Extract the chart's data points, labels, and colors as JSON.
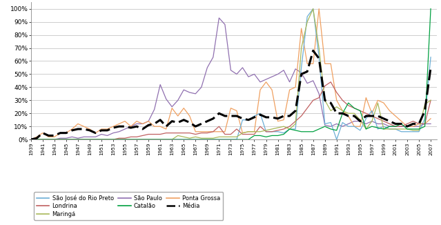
{
  "years": [
    1939,
    1940,
    1941,
    1942,
    1943,
    1944,
    1945,
    1946,
    1947,
    1948,
    1949,
    1950,
    1951,
    1952,
    1953,
    1954,
    1955,
    1956,
    1957,
    1958,
    1959,
    1960,
    1961,
    1962,
    1963,
    1964,
    1965,
    1966,
    1967,
    1968,
    1969,
    1970,
    1971,
    1972,
    1973,
    1974,
    1975,
    1976,
    1977,
    1978,
    1979,
    1980,
    1981,
    1982,
    1983,
    1984,
    1985,
    1986,
    1987,
    1988,
    1989,
    1990,
    1991,
    1992,
    1993,
    1994,
    1995,
    1996,
    1997,
    1998,
    1999,
    2000,
    2001,
    2002,
    2003,
    2004,
    2005,
    2006,
    2007
  ],
  "sao_jose": [
    0,
    0,
    0,
    0,
    0,
    0,
    0,
    0,
    0,
    0,
    0,
    0,
    0,
    0,
    0,
    0,
    0,
    0,
    0,
    0,
    0,
    0,
    0,
    0,
    0,
    0,
    0,
    0,
    0,
    0,
    0,
    0,
    0,
    0,
    0,
    0,
    0.15,
    0.15,
    0.18,
    0.2,
    0.06,
    0.06,
    0.06,
    0.05,
    0.08,
    0.08,
    0.55,
    0.94,
    1.0,
    0.63,
    0.12,
    0.13,
    0.0,
    0.13,
    0.1,
    0.1,
    0.07,
    0.16,
    0.22,
    0.08,
    0.1,
    0.08,
    0.08,
    0.06,
    0.06,
    0.06,
    0.06,
    0.16,
    0.63
  ],
  "londrina": [
    0,
    0,
    0,
    0,
    0,
    0,
    0,
    0,
    0,
    0,
    0,
    0,
    0,
    0,
    0,
    0.01,
    0.01,
    0.02,
    0.02,
    0.03,
    0.04,
    0.04,
    0.04,
    0.05,
    0.05,
    0.05,
    0.05,
    0.05,
    0.04,
    0.05,
    0.05,
    0.06,
    0.1,
    0.04,
    0.04,
    0.08,
    0.04,
    0.04,
    0.04,
    0.1,
    0.06,
    0.06,
    0.07,
    0.08,
    0.1,
    0.14,
    0.18,
    0.24,
    0.3,
    0.32,
    0.41,
    0.44,
    0.36,
    0.3,
    0.26,
    0.24,
    0.22,
    0.2,
    0.18,
    0.16,
    0.14,
    0.12,
    0.1,
    0.1,
    0.12,
    0.14,
    0.12,
    0.12,
    0.3
  ],
  "maringa": [
    0,
    0,
    0,
    0,
    0,
    0,
    0,
    0,
    0,
    0,
    0,
    0,
    0,
    0,
    0,
    0,
    0,
    0,
    0,
    0,
    0,
    0,
    0,
    0,
    0,
    0.03,
    0.02,
    0.01,
    0.02,
    0.01,
    0.01,
    0.01,
    0.02,
    0.02,
    0.02,
    0.02,
    0.05,
    0.06,
    0.06,
    0.06,
    0.07,
    0.08,
    0.09,
    0.1,
    0.08,
    0.12,
    0.7,
    0.9,
    1.0,
    0.7,
    0.3,
    0.22,
    0.25,
    0.22,
    0.2,
    0.2,
    0.15,
    0.08,
    0.14,
    0.28,
    0.08,
    0.08,
    0.08,
    0.08,
    0.08,
    0.07,
    0.07,
    0.27,
    0.3
  ],
  "sao_paulo": [
    0,
    0,
    0,
    0,
    0,
    0.01,
    0.01,
    0.02,
    0.01,
    0.02,
    0.02,
    0.02,
    0.04,
    0.03,
    0.05,
    0.06,
    0.08,
    0.1,
    0.12,
    0.12,
    0.14,
    0.23,
    0.42,
    0.31,
    0.25,
    0.3,
    0.38,
    0.36,
    0.35,
    0.4,
    0.55,
    0.63,
    0.93,
    0.88,
    0.53,
    0.5,
    0.55,
    0.48,
    0.5,
    0.44,
    0.46,
    0.48,
    0.5,
    0.53,
    0.44,
    0.54,
    0.51,
    0.43,
    0.45,
    0.35,
    0.11,
    0.1,
    0.12,
    0.1,
    0.12,
    0.14,
    0.14,
    0.12,
    0.14,
    0.12,
    0.12,
    0.1,
    0.1,
    0.1,
    0.1,
    0.1,
    0.1,
    0.12,
    0.12
  ],
  "catalo": [
    0,
    0,
    0,
    0,
    0,
    0,
    0,
    0,
    0,
    0,
    0,
    0,
    0,
    0,
    0,
    0,
    0,
    0,
    0,
    0,
    0,
    0,
    0,
    0,
    0,
    0,
    0,
    0,
    0,
    0,
    0,
    0,
    0,
    0,
    0,
    0,
    0,
    0,
    0.03,
    0.03,
    0.02,
    0.03,
    0.03,
    0.04,
    0.08,
    0.07,
    0.06,
    0.06,
    0.06,
    0.08,
    0.1,
    0.08,
    0.07,
    0.2,
    0.28,
    0.24,
    0.22,
    0.08,
    0.1,
    0.09,
    0.08,
    0.1,
    0.1,
    0.12,
    0.08,
    0.08,
    0.08,
    0.1,
    1.0
  ],
  "ponta_grossa": [
    0,
    0.02,
    0.05,
    0.02,
    0.02,
    0.05,
    0.05,
    0.08,
    0.12,
    0.1,
    0.08,
    0.05,
    0.08,
    0.08,
    0.1,
    0.12,
    0.14,
    0.1,
    0.14,
    0.12,
    0.14,
    0.1,
    0.1,
    0.08,
    0.24,
    0.18,
    0.24,
    0.18,
    0.06,
    0.06,
    0.06,
    0.06,
    0.06,
    0.06,
    0.24,
    0.22,
    0.05,
    0.06,
    0.06,
    0.38,
    0.44,
    0.38,
    0.14,
    0.15,
    0.38,
    0.4,
    0.85,
    0.58,
    0.58,
    1.0,
    0.58,
    0.58,
    0.3,
    0.22,
    0.18,
    0.1,
    0.1,
    0.32,
    0.2,
    0.3,
    0.28,
    0.22,
    0.18,
    0.14,
    0.1,
    0.1,
    0.12,
    0.12,
    0.16
  ],
  "media": [
    0,
    0.01,
    0.05,
    0.03,
    0.03,
    0.05,
    0.05,
    0.07,
    0.08,
    0.08,
    0.07,
    0.05,
    0.07,
    0.07,
    0.09,
    0.1,
    0.1,
    0.09,
    0.1,
    0.08,
    0.11,
    0.12,
    0.15,
    0.1,
    0.14,
    0.13,
    0.15,
    0.13,
    0.1,
    0.12,
    0.14,
    0.16,
    0.2,
    0.18,
    0.18,
    0.18,
    0.16,
    0.15,
    0.17,
    0.19,
    0.17,
    0.17,
    0.16,
    0.18,
    0.18,
    0.22,
    0.5,
    0.52,
    0.68,
    0.62,
    0.3,
    0.28,
    0.2,
    0.2,
    0.18,
    0.18,
    0.14,
    0.18,
    0.18,
    0.18,
    0.16,
    0.14,
    0.12,
    0.12,
    0.1,
    0.12,
    0.12,
    0.22,
    0.55
  ],
  "colors": {
    "sao_jose": "#6baed6",
    "londrina": "#c06060",
    "maringa": "#a8b858",
    "sao_paulo": "#9070b0",
    "catalo": "#00a040",
    "ponta_grossa": "#f0a060",
    "media": "#000000"
  },
  "legend_labels": {
    "sao_jose": "São José do Rio Preto",
    "londrina": "Londrina",
    "maringa": "Maringá",
    "sao_paulo": "São Paulo",
    "catalo": "Catalão",
    "ponta_grossa": "Ponta Grossa",
    "media": "Média"
  },
  "yticks": [
    0,
    0.1,
    0.2,
    0.3,
    0.4,
    0.5,
    0.6,
    0.7,
    0.8,
    0.9,
    1.0
  ],
  "ytick_labels": [
    "0%",
    "10%",
    "20%",
    "30%",
    "40%",
    "50%",
    "60%",
    "70%",
    "80%",
    "90%",
    "100%"
  ],
  "xtick_years": [
    1939,
    1941,
    1943,
    1945,
    1947,
    1949,
    1951,
    1953,
    1955,
    1957,
    1959,
    1961,
    1963,
    1965,
    1967,
    1969,
    1971,
    1973,
    1975,
    1977,
    1979,
    1981,
    1983,
    1985,
    1987,
    1989,
    1991,
    1993,
    1995,
    1997,
    1999,
    2001,
    2003,
    2005,
    2007
  ],
  "xlim": [
    1939,
    2008
  ],
  "ylim": [
    0,
    1.05
  ]
}
